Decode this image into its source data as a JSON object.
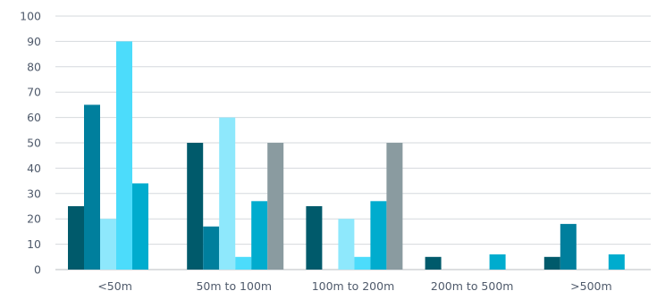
{
  "chart_data": {
    "type": "bar",
    "categories": [
      "<50m",
      "50m to 100m",
      "100m to 200m",
      "200m to 500m",
      ">500m"
    ],
    "series": [
      {
        "values": [
          25,
          50,
          25,
          5,
          5
        ],
        "color": "#005a6b"
      },
      {
        "values": [
          65,
          17,
          0,
          0,
          18
        ],
        "color": "#007f9d"
      },
      {
        "values": [
          20,
          60,
          20,
          0,
          0
        ],
        "color": "#8ee8fc"
      },
      {
        "values": [
          90,
          5,
          5,
          0,
          0
        ],
        "color": "#4cdcfb"
      },
      {
        "values": [
          34,
          27,
          27,
          6,
          6
        ],
        "color": "#00acce"
      },
      {
        "values": [
          0,
          50,
          50,
          0,
          0
        ],
        "color": "#8a9ba0"
      }
    ],
    "yticks": [
      0,
      10,
      20,
      30,
      40,
      50,
      60,
      70,
      80,
      90,
      100
    ],
    "ylim": [
      0,
      100
    ],
    "grid": true,
    "legend": "none"
  }
}
